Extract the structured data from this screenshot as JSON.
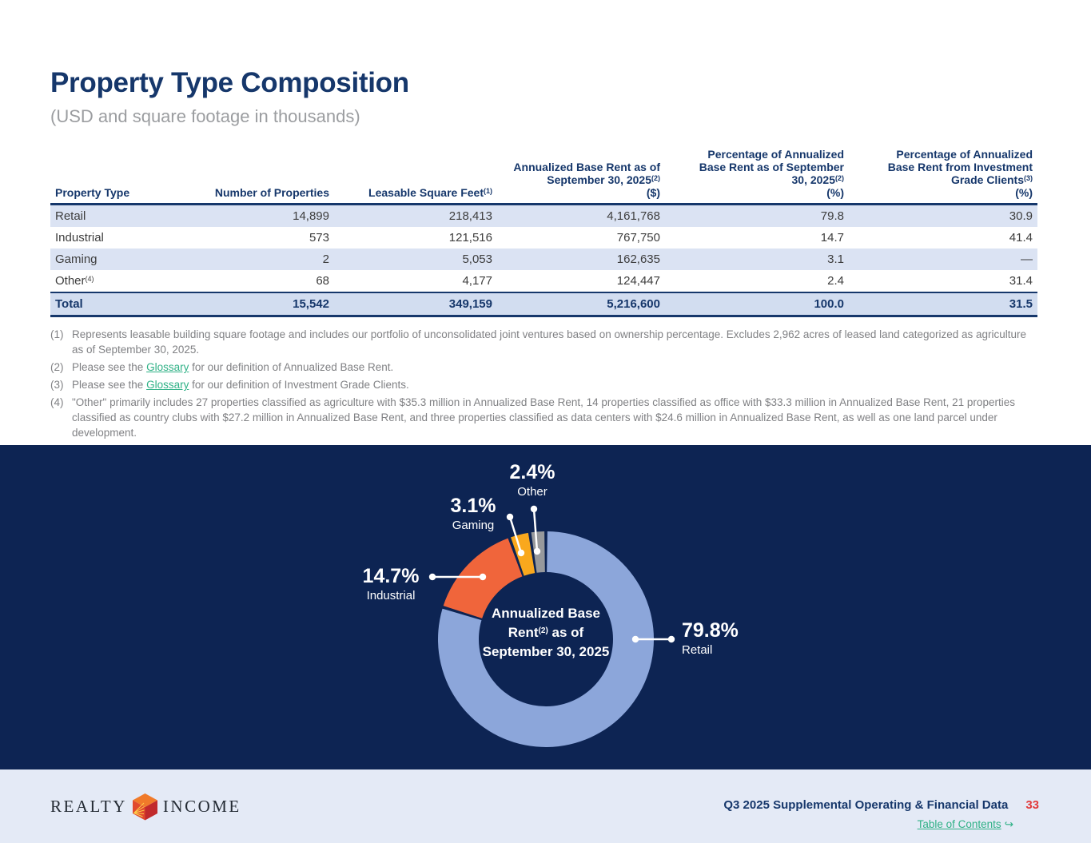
{
  "page": {
    "title": "Property Type Composition",
    "subtitle": "(USD and square footage in thousands)"
  },
  "table": {
    "columns": [
      {
        "label": "Property Type",
        "sup": "",
        "unit": ""
      },
      {
        "label": "Number of Properties",
        "sup": "",
        "unit": ""
      },
      {
        "label": "Leasable Square Feet",
        "sup": "(1)",
        "unit": ""
      },
      {
        "label": "Annualized Base Rent as of September 30, 2025",
        "sup": "(2)",
        "unit": "($)"
      },
      {
        "label": "Percentage of Annualized Base Rent as of September 30, 2025",
        "sup": "(2)",
        "unit": "(%)"
      },
      {
        "label": "Percentage of Annualized Base Rent from Investment Grade Clients",
        "sup": "(3)",
        "unit": "(%)"
      }
    ],
    "rows": [
      {
        "cells": [
          "Retail",
          "14,899",
          "218,413",
          "4,161,768",
          "79.8",
          "30.9"
        ],
        "sup": "",
        "variant": "striped"
      },
      {
        "cells": [
          "Industrial",
          "573",
          "121,516",
          "767,750",
          "14.7",
          "41.4"
        ],
        "sup": "",
        "variant": "plain"
      },
      {
        "cells": [
          "Gaming",
          "2",
          "5,053",
          "162,635",
          "3.1",
          "—"
        ],
        "sup": "",
        "variant": "striped"
      },
      {
        "cells": [
          "Other",
          "68",
          "4,177",
          "124,447",
          "2.4",
          "31.4"
        ],
        "sup": "(4)",
        "variant": "plain"
      },
      {
        "cells": [
          "Total",
          "15,542",
          "349,159",
          "5,216,600",
          "100.0",
          "31.5"
        ],
        "sup": "",
        "variant": "total"
      }
    ]
  },
  "footnotes": [
    {
      "marker": "(1)",
      "segments": [
        {
          "t": "text",
          "v": "Represents leasable building square footage and includes our portfolio of unconsolidated joint ventures based on ownership percentage. Excludes 2,962 acres of leased land categorized as agriculture as of September 30, 2025."
        }
      ]
    },
    {
      "marker": "(2)",
      "segments": [
        {
          "t": "text",
          "v": "Please see the "
        },
        {
          "t": "link",
          "v": "Glossary"
        },
        {
          "t": "text",
          "v": " for our definition of Annualized Base Rent."
        }
      ]
    },
    {
      "marker": "(3)",
      "segments": [
        {
          "t": "text",
          "v": "Please see the "
        },
        {
          "t": "link",
          "v": "Glossary"
        },
        {
          "t": "text",
          "v": " for our definition of Investment Grade Clients."
        }
      ]
    },
    {
      "marker": "(4)",
      "segments": [
        {
          "t": "text",
          "v": "\"Other\" primarily includes 27 properties classified as agriculture with $35.3 million in Annualized Base Rent, 14 properties classified as office with $33.3 million in Annualized Base Rent, 21 properties classified as country clubs with $27.2 million in Annualized Base Rent, and three properties classified as data centers with $24.6 million in Annualized Base Rent, as well as one land parcel under development."
        }
      ]
    }
  ],
  "chart_data": {
    "type": "pie",
    "subtype": "donut",
    "title": "Annualized Base Rent(2) as of September 30, 2025",
    "background": "#0D2453",
    "start_angle_deg_from_top": 0,
    "direction": "clockwise",
    "series": [
      {
        "name": "Retail",
        "value": 79.8,
        "display": "79.8%",
        "color": "#8CA6DA"
      },
      {
        "name": "Industrial",
        "value": 14.7,
        "display": "14.7%",
        "color": "#F0653B"
      },
      {
        "name": "Gaming",
        "value": 3.1,
        "display": "3.1%",
        "color": "#F9A81D"
      },
      {
        "name": "Other",
        "value": 2.4,
        "display": "2.4%",
        "color": "#97999C"
      }
    ],
    "center_label": {
      "line1": "Annualized Base",
      "line2_pre": "Rent",
      "line2_sup": "(2)",
      "line2_post": " as of",
      "line3": "September 30, 2025"
    }
  },
  "footer": {
    "logo_left": "REALTY",
    "logo_right": "INCOME",
    "doc_title": "Q3 2025 Supplemental Operating & Financial Data",
    "page_number": "33",
    "toc_label": "Table of Contents",
    "toc_arrow": "↪"
  },
  "colors": {
    "navy_text": "#16376B",
    "band_navy": "#0D2453",
    "stripe": "#DBE3F3",
    "total_row": "#D2DDF0",
    "link_teal": "#2FB186",
    "page_number_red": "#E23B3C",
    "footer_bg": "#E4EAF6"
  }
}
